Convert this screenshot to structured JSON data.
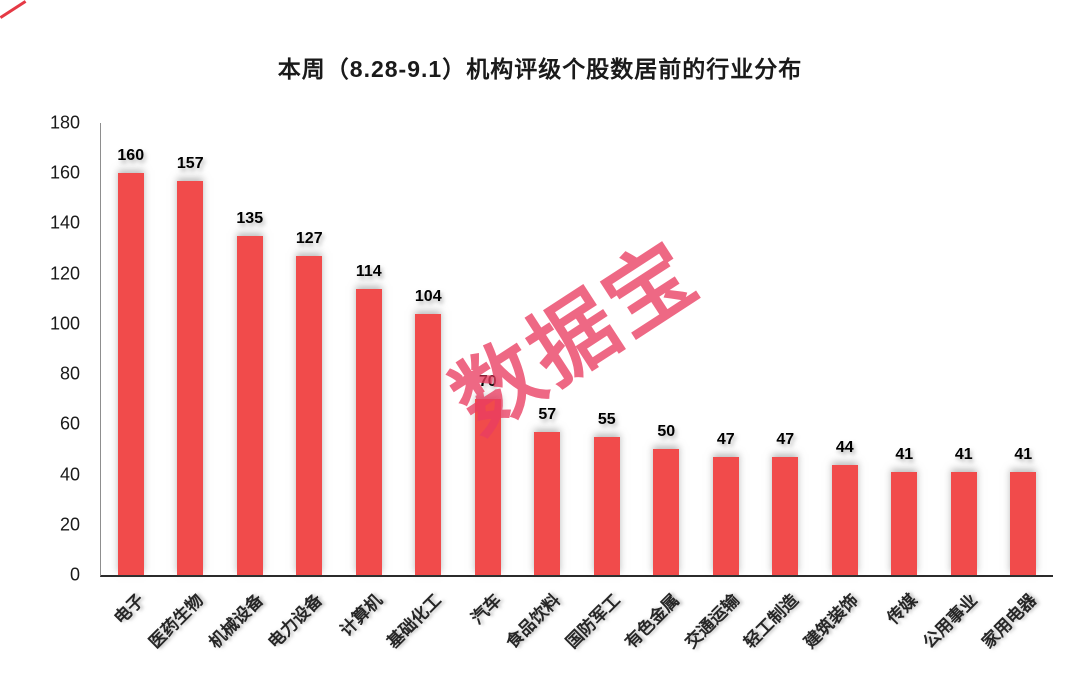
{
  "watermark": {
    "text": "数据宝",
    "color": "#e93e62"
  },
  "chart_data": {
    "type": "bar",
    "title": "本周（8.28-9.1）机构评级个股数居前的行业分布",
    "categories": [
      "电子",
      "医药生物",
      "机械设备",
      "电力设备",
      "计算机",
      "基础化工",
      "汽车",
      "食品饮料",
      "国防军工",
      "有色金属",
      "交通运输",
      "轻工制造",
      "建筑装饰",
      "传媒",
      "公用事业",
      "家用电器"
    ],
    "values": [
      160,
      157,
      135,
      127,
      114,
      104,
      70,
      57,
      55,
      50,
      47,
      47,
      44,
      41,
      41,
      41
    ],
    "xlabel": "",
    "ylabel": "",
    "ylim": [
      0,
      180
    ],
    "yticks": [
      0,
      20,
      40,
      60,
      80,
      100,
      120,
      140,
      160,
      180
    ],
    "bar_color": "#f14b4b",
    "grid": false,
    "legend": false
  }
}
